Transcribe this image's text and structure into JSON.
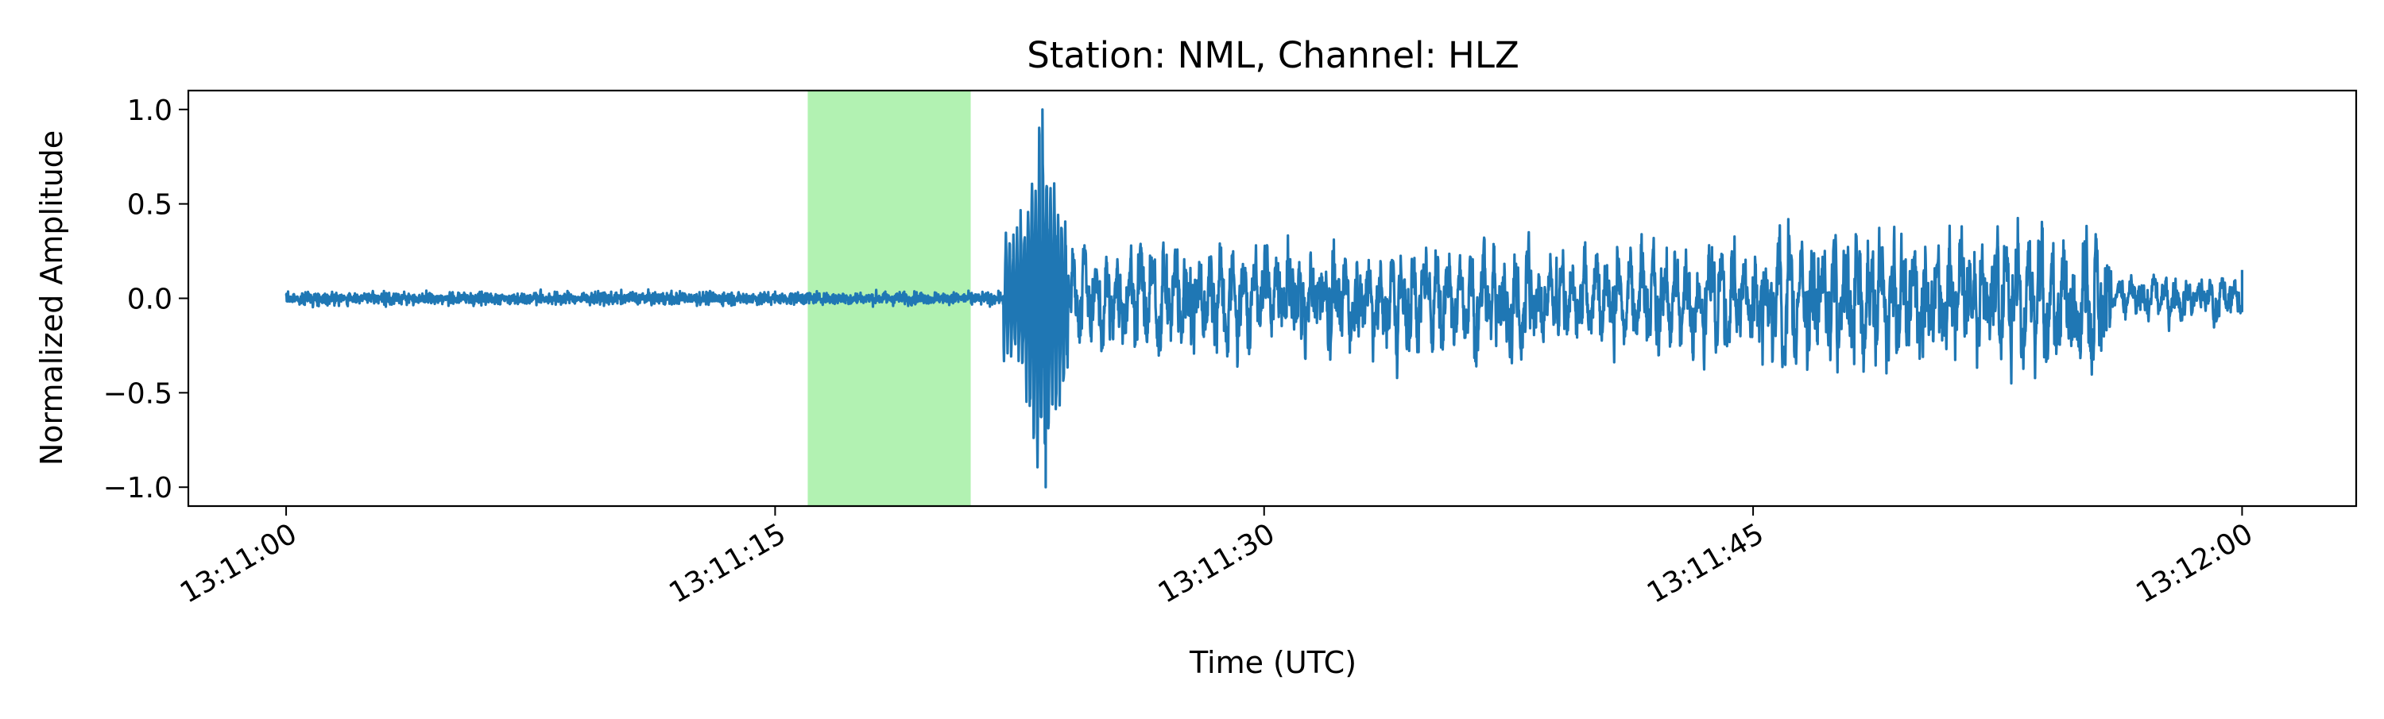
{
  "chart_data": {
    "type": "line",
    "title": "Station: NML, Channel: HLZ",
    "xlabel": "Time (UTC)",
    "ylabel": "Normalized Amplitude",
    "x_ticks": [
      "13:11:00",
      "13:11:15",
      "13:11:30",
      "13:11:45",
      "13:12:00"
    ],
    "x_range_seconds_after_13_11_00": [
      -3,
      63.5
    ],
    "x_start": "13:11:00",
    "x_end": "13:12:00",
    "y_ticks": [
      "1.0",
      "0.5",
      "0.0",
      "−0.5",
      "−1.0"
    ],
    "y_tick_values": [
      1.0,
      0.5,
      0.0,
      -0.5,
      -1.0
    ],
    "ylim": [
      -1.1,
      1.1
    ],
    "highlight_window": {
      "start": "13:11:16",
      "end": "13:11:21",
      "color": "#b2f2b2"
    },
    "series": [
      {
        "color": "#1f77b4",
        "segments": [
          {
            "start": "13:11:00",
            "end": "13:11:22",
            "noise_amplitude": 0.05
          },
          {
            "start": "13:11:22",
            "end": "13:11:24",
            "peak_amplitude": 1.0,
            "min_amplitude": -1.0,
            "peak_time": "13:11:23.2"
          },
          {
            "start": "13:11:24",
            "end": "13:11:45",
            "envelope_amplitude": 0.35
          },
          {
            "start": "13:11:45",
            "end": "13:11:56",
            "envelope_amplitude": 0.45
          },
          {
            "start": "13:11:56",
            "end": "13:12:00",
            "envelope_amplitude": 0.15
          }
        ]
      }
    ],
    "grid": false,
    "legend": "none"
  }
}
